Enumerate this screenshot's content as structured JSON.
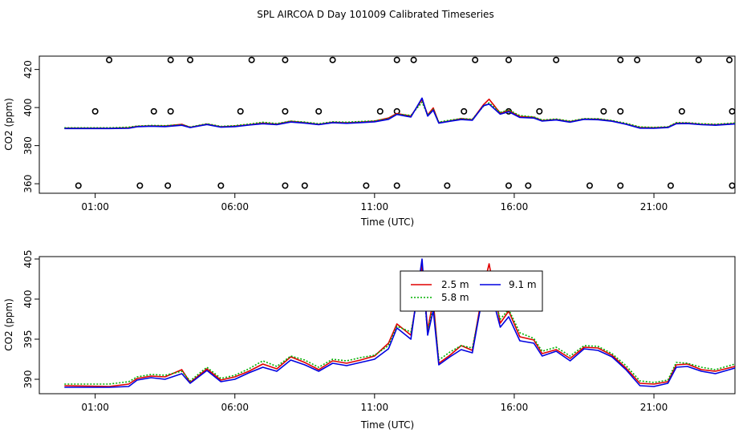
{
  "figure_title": "SPL AIRCOA D  Day 101009  Calibrated Timeseries",
  "colors": {
    "s1": "#e00000",
    "s2": "#00b000",
    "s3": "#0000e0",
    "axis": "#000000"
  },
  "chart_data": [
    {
      "type": "scatter",
      "title": "",
      "xlabel": "Time (UTC)",
      "ylabel": "CO2 (ppm)",
      "xlim": [
        -1.0,
        23.9
      ],
      "ylim": [
        355,
        427
      ],
      "xticks": [
        1,
        6,
        11,
        16,
        21
      ],
      "xtick_labels": [
        "01:00",
        "06:00",
        "11:00",
        "16:00",
        "21:00"
      ],
      "yticks": [
        360,
        380,
        400,
        420
      ],
      "ytick_labels": [
        "360",
        "380",
        "400",
        "420"
      ],
      "circles": {
        "top": [
          1.5,
          3.7,
          4.4,
          6.6,
          7.8,
          9.5,
          11.8,
          12.4,
          14.6,
          15.8,
          17.5,
          19.8,
          20.4,
          22.6,
          23.7
        ],
        "mid": [
          1.0,
          3.1,
          3.7,
          6.2,
          7.8,
          9.0,
          11.2,
          11.8,
          14.2,
          15.8,
          16.9,
          19.2,
          19.8,
          22.0,
          23.8
        ],
        "low": [
          0.4,
          2.6,
          3.6,
          5.5,
          7.8,
          8.5,
          10.7,
          11.8,
          13.6,
          15.8,
          16.5,
          18.7,
          19.8,
          21.6,
          23.8
        ],
        "top_y": 425,
        "mid_y": 398,
        "low_y": 359
      },
      "series": [
        {
          "name": "2.5 m",
          "x": [
            -0.1,
            1.5,
            2.2,
            2.5,
            3.0,
            3.5,
            4.1,
            4.4,
            5.0,
            5.5,
            6.0,
            6.5,
            7.0,
            7.5,
            8.0,
            8.5,
            9.0,
            9.5,
            10.0,
            10.5,
            11.0,
            11.5,
            11.8,
            12.3,
            12.7,
            12.9,
            13.1,
            13.3,
            13.7,
            14.1,
            14.5,
            14.9,
            15.1,
            15.5,
            15.8,
            16.2,
            16.7,
            17.0,
            17.5,
            18.0,
            18.5,
            19.0,
            19.5,
            20.0,
            20.5,
            21.0,
            21.5,
            21.8,
            22.2,
            22.7,
            23.2,
            23.9
          ],
          "values": [
            389.2,
            389.1,
            389.4,
            390.1,
            390.4,
            390.3,
            391.2,
            389.6,
            391.3,
            389.9,
            390.3,
            391.0,
            391.9,
            391.3,
            392.8,
            392.1,
            391.2,
            392.3,
            392.0,
            392.4,
            392.9,
            394.5,
            396.9,
            395.5,
            404.2,
            396.2,
            399.8,
            392.0,
            393.0,
            394.2,
            393.6,
            401.5,
            404.4,
            397.0,
            398.5,
            395.3,
            394.9,
            393.2,
            393.7,
            392.6,
            394.0,
            393.9,
            393.0,
            391.4,
            389.5,
            389.4,
            389.7,
            391.8,
            391.9,
            391.2,
            391.0,
            391.6
          ]
        },
        {
          "name": "5.8 m",
          "x": [
            -0.1,
            1.5,
            2.2,
            2.5,
            3.0,
            3.5,
            4.1,
            4.4,
            5.0,
            5.5,
            6.0,
            6.5,
            7.0,
            7.5,
            8.0,
            8.5,
            9.0,
            9.5,
            10.0,
            10.5,
            11.0,
            11.5,
            11.8,
            12.3,
            12.7,
            12.9,
            13.1,
            13.3,
            13.7,
            14.1,
            14.5,
            14.9,
            15.1,
            15.5,
            15.8,
            16.2,
            16.7,
            17.0,
            17.5,
            18.0,
            18.5,
            19.0,
            19.5,
            20.0,
            20.5,
            21.0,
            21.5,
            21.8,
            22.2,
            22.7,
            23.2,
            23.9
          ],
          "values": [
            389.4,
            389.4,
            389.7,
            390.3,
            390.6,
            390.5,
            391.0,
            389.8,
            391.5,
            390.1,
            390.5,
            391.3,
            392.3,
            391.6,
            392.9,
            392.4,
            391.5,
            392.5,
            392.3,
            392.7,
            393.0,
            394.2,
            396.6,
            395.9,
            402.8,
            396.0,
            399.0,
            392.4,
            393.4,
            394.2,
            393.9,
            400.7,
            402.5,
            397.5,
            398.7,
            395.8,
            395.1,
            393.5,
            394.0,
            392.9,
            394.2,
            394.1,
            393.2,
            391.7,
            389.8,
            389.6,
            389.9,
            392.1,
            392.0,
            391.5,
            391.2,
            391.9
          ]
        },
        {
          "name": "9.1 m",
          "x": [
            -0.1,
            1.5,
            2.2,
            2.5,
            3.0,
            3.5,
            4.1,
            4.4,
            5.0,
            5.5,
            6.0,
            6.5,
            7.0,
            7.5,
            8.0,
            8.5,
            9.0,
            9.5,
            10.0,
            10.5,
            11.0,
            11.5,
            11.8,
            12.3,
            12.7,
            12.9,
            13.1,
            13.3,
            13.7,
            14.1,
            14.5,
            14.9,
            15.1,
            15.5,
            15.8,
            16.2,
            16.7,
            17.0,
            17.5,
            18.0,
            18.5,
            19.0,
            19.5,
            20.0,
            20.5,
            21.0,
            21.5,
            21.8,
            22.2,
            22.7,
            23.2,
            23.9
          ],
          "values": [
            389.0,
            389.0,
            389.1,
            389.9,
            390.2,
            390.0,
            390.7,
            389.5,
            391.1,
            389.7,
            390.0,
            390.8,
            391.5,
            391.0,
            392.4,
            391.8,
            391.0,
            392.0,
            391.7,
            392.1,
            392.5,
            393.8,
            396.4,
            395.0,
            405.0,
            395.5,
            398.6,
            391.8,
            392.8,
            393.7,
            393.3,
            401.0,
            401.8,
            396.5,
            397.8,
            394.8,
            394.5,
            392.9,
            393.5,
            392.3,
            393.8,
            393.6,
            392.8,
            391.2,
            389.2,
            389.1,
            389.5,
            391.5,
            391.6,
            391.0,
            390.7,
            391.4
          ]
        }
      ]
    },
    {
      "type": "line",
      "title": "",
      "xlabel": "Time (UTC)",
      "ylabel": "CO2 (ppm)",
      "xlim": [
        -1.0,
        23.9
      ],
      "ylim": [
        388.2,
        405.3
      ],
      "xticks": [
        1,
        6,
        11,
        16,
        21
      ],
      "xtick_labels": [
        "01:00",
        "06:00",
        "11:00",
        "16:00",
        "21:00"
      ],
      "yticks": [
        390,
        395,
        400,
        405
      ],
      "ytick_labels": [
        "390",
        "395",
        "400",
        "405"
      ],
      "legend": {
        "position": "top-center",
        "entries": [
          "2.5 m",
          "5.8 m",
          "9.1 m"
        ]
      },
      "series_ref": "same as panel 1 series"
    }
  ]
}
